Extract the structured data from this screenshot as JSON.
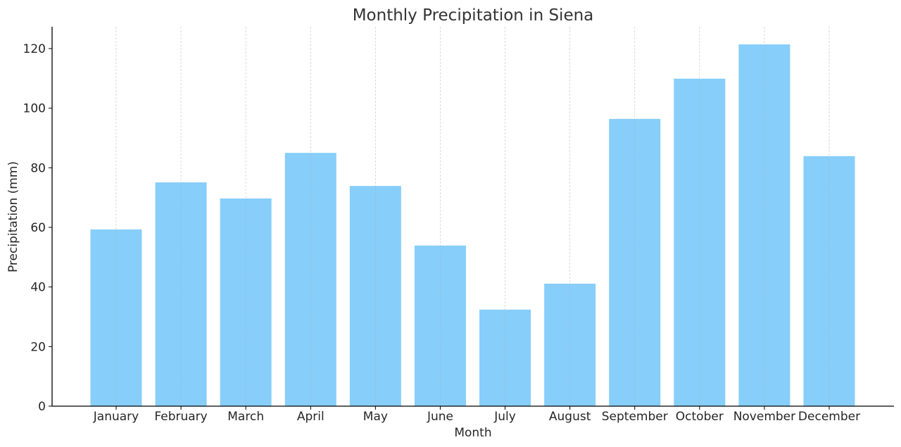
{
  "chart_data": {
    "type": "bar",
    "title": "Monthly Precipitation in Siena",
    "xlabel": "Month",
    "ylabel": "Precipitation (mm)",
    "categories": [
      "January",
      "February",
      "March",
      "April",
      "May",
      "June",
      "July",
      "August",
      "September",
      "October",
      "November",
      "December"
    ],
    "values": [
      59.3,
      75.1,
      69.7,
      85.0,
      73.9,
      53.9,
      32.4,
      41.1,
      96.4,
      109.9,
      121.4,
      83.9
    ],
    "yticks": [
      "0",
      "20",
      "40",
      "60",
      "80",
      "100",
      "120"
    ],
    "ylim": [
      0,
      127
    ],
    "grid": "vertical dashed",
    "bar_color": "#87CEFA"
  }
}
